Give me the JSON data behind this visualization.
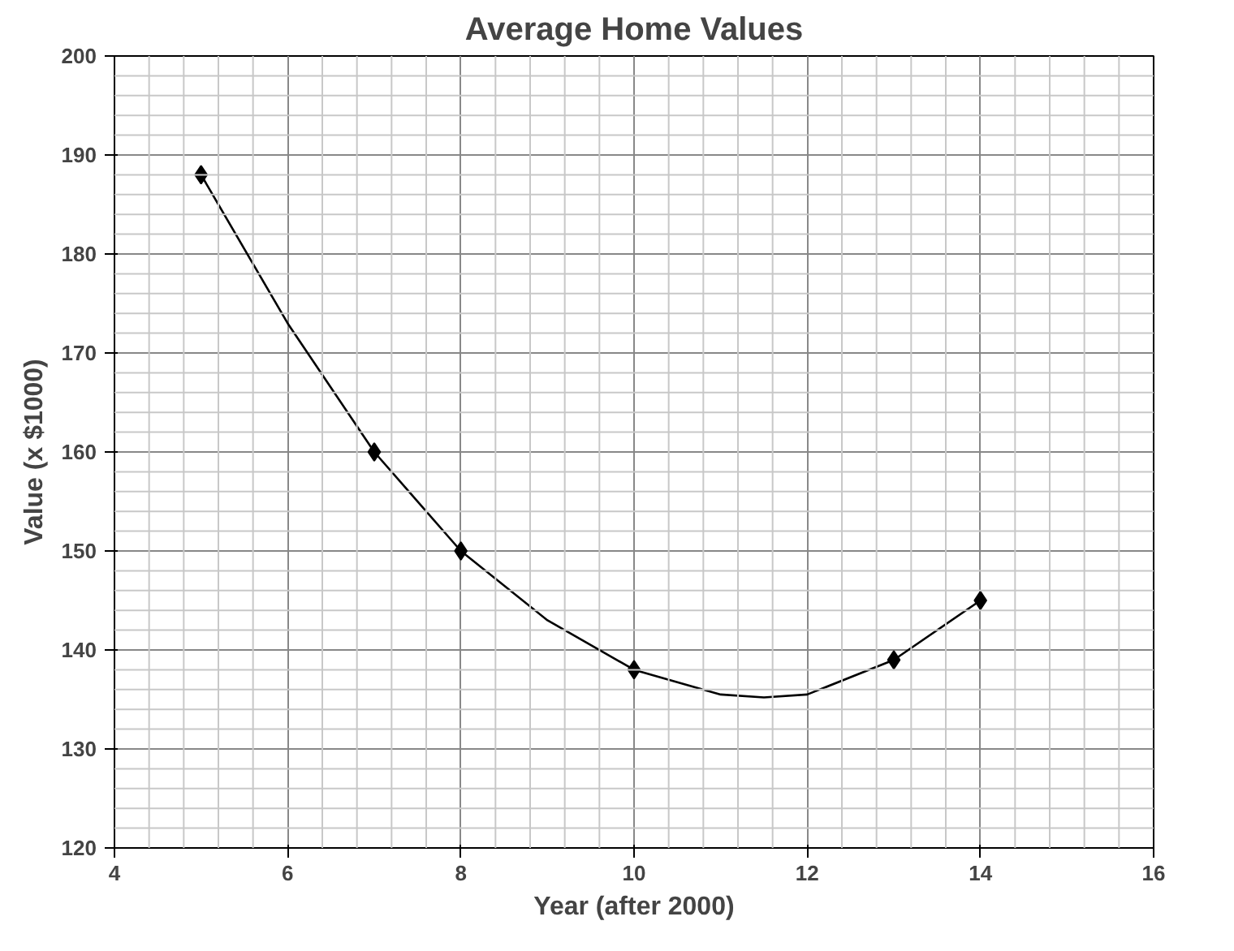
{
  "chart_data": {
    "type": "scatter",
    "title": "Average Home Values",
    "xlabel": "Year (after 2000)",
    "ylabel": "Value (x $1000)",
    "xlim": [
      4,
      16
    ],
    "xticks": [
      4,
      6,
      8,
      10,
      12,
      14,
      16
    ],
    "ylim": [
      120,
      200
    ],
    "yticks": [
      120,
      130,
      140,
      150,
      160,
      170,
      180,
      190,
      200
    ],
    "grid": true,
    "marker": "diamond",
    "series": [
      {
        "color": "#000000",
        "x": [
          5,
          7,
          8,
          10,
          13,
          14
        ],
        "values": [
          188,
          160,
          150,
          138,
          139,
          145
        ]
      },
      {
        "type": "line",
        "color": "#000000",
        "marker": "none",
        "line_style": "solid",
        "x": [
          5,
          6,
          7,
          8,
          9,
          10,
          11,
          11.5,
          12,
          13,
          14
        ],
        "values": [
          188,
          173,
          160,
          150,
          143,
          138,
          135.5,
          135.2,
          135.5,
          139,
          145
        ]
      }
    ]
  }
}
